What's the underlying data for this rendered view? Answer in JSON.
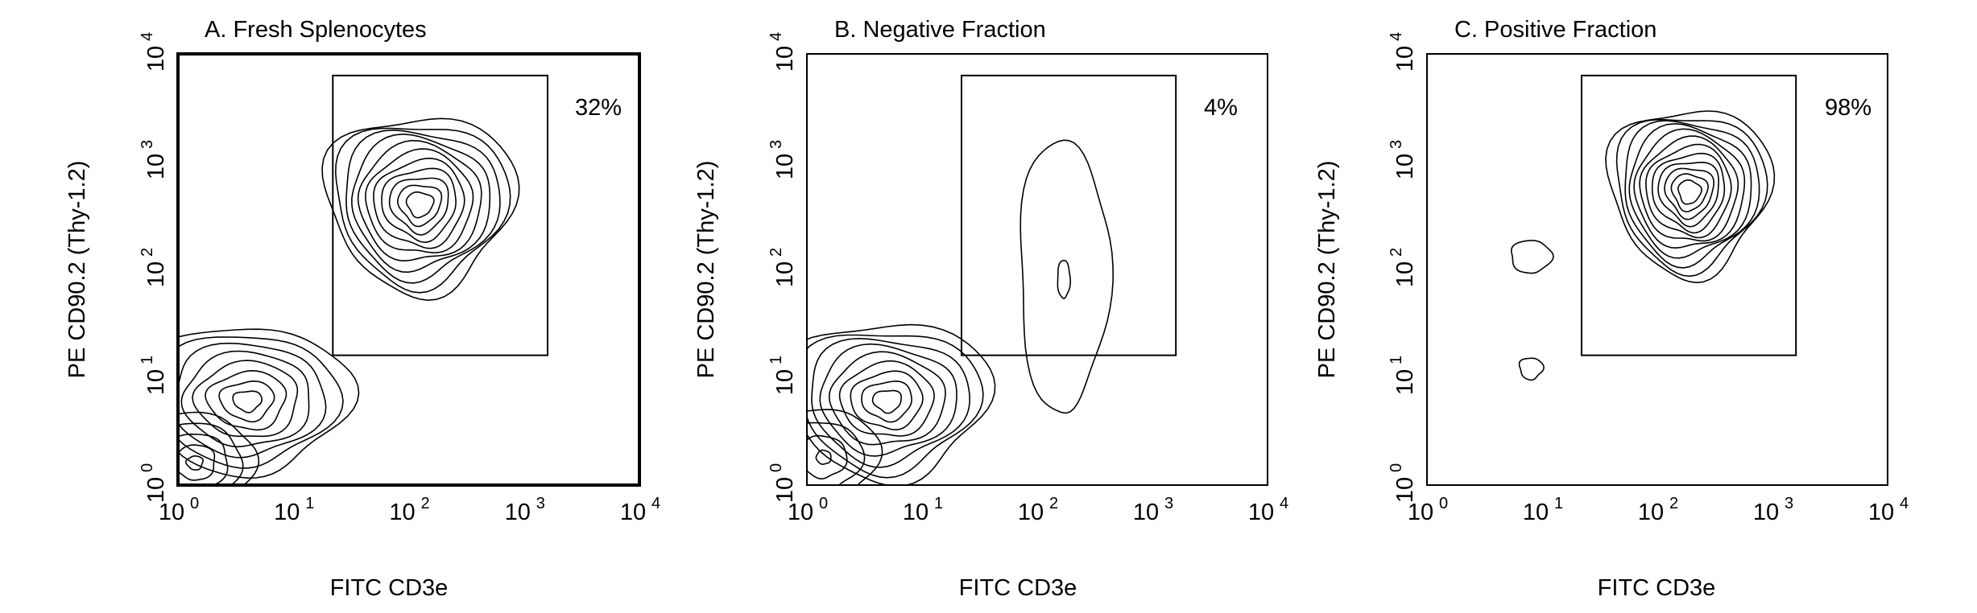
{
  "chart_data": [
    {
      "type": "contour",
      "title": "A.  Fresh Splenocytes",
      "xlabel": "FITC CD3e",
      "ylabel": "PE CD90.2 (Thy-1.2)",
      "xscale": "log",
      "yscale": "log",
      "xlim": [
        1,
        10000
      ],
      "ylim": [
        1,
        10000
      ],
      "x_ticks": [
        "10",
        "10",
        "10",
        "10",
        "10"
      ],
      "x_tick_exponents": [
        "0",
        "1",
        "2",
        "3",
        "4"
      ],
      "y_ticks": [
        "10",
        "10",
        "10",
        "10",
        "10"
      ],
      "y_tick_exponents": [
        "0",
        "1",
        "2",
        "3",
        "4"
      ],
      "gate": {
        "x": [
          22,
          1600
        ],
        "y": [
          16,
          6300
        ]
      },
      "gate_label": "32%",
      "populations": [
        {
          "cx": 125,
          "cy": 400,
          "sx": 0.35,
          "sy": 0.36,
          "levels": 11
        },
        {
          "cx": 4,
          "cy": 6,
          "sx": 0.38,
          "sy": 0.3,
          "levels": 8
        },
        {
          "cx": 1.4,
          "cy": 1.6,
          "sx": 0.22,
          "sy": 0.2,
          "levels": 5
        }
      ]
    },
    {
      "type": "contour",
      "title": "B.  Negative Fraction",
      "xlabel": "FITC CD3e",
      "ylabel": "PE CD90.2 (Thy-1.2)",
      "xscale": "log",
      "yscale": "log",
      "xlim": [
        1,
        10000
      ],
      "ylim": [
        1,
        10000
      ],
      "x_ticks": [
        "10",
        "10",
        "10",
        "10",
        "10"
      ],
      "x_tick_exponents": [
        "0",
        "1",
        "2",
        "3",
        "4"
      ],
      "y_ticks": [
        "10",
        "10",
        "10",
        "10",
        "10"
      ],
      "y_tick_exponents": [
        "0",
        "1",
        "2",
        "3",
        "4"
      ],
      "gate": {
        "x": [
          22,
          1600
        ],
        "y": [
          16,
          6300
        ]
      },
      "gate_label": "4%",
      "populations": [
        {
          "cx": 5,
          "cy": 6,
          "sx": 0.38,
          "sy": 0.32,
          "levels": 9
        },
        {
          "cx": 1.4,
          "cy": 1.8,
          "sx": 0.2,
          "sy": 0.2,
          "levels": 4
        },
        {
          "cx": 170,
          "cy": 80,
          "sx": 0.17,
          "sy": 0.55,
          "levels": 2
        }
      ]
    },
    {
      "type": "contour",
      "title": "C.  Positive Fraction",
      "xlabel": "FITC CD3e",
      "ylabel": "PE CD90.2 (Thy-1.2)",
      "xscale": "log",
      "yscale": "log",
      "xlim": [
        1,
        10000
      ],
      "ylim": [
        1,
        10000
      ],
      "x_ticks": [
        "10",
        "10",
        "10",
        "10",
        "10"
      ],
      "x_tick_exponents": [
        "0",
        "1",
        "2",
        "3",
        "4"
      ],
      "y_ticks": [
        "10",
        "10",
        "10",
        "10",
        "10"
      ],
      "y_tick_exponents": [
        "0",
        "1",
        "2",
        "3",
        "4"
      ],
      "gate": {
        "x": [
          22,
          1600
        ],
        "y": [
          16,
          6300
        ]
      },
      "gate_label": "98%",
      "populations": [
        {
          "cx": 190,
          "cy": 520,
          "sx": 0.3,
          "sy": 0.34,
          "levels": 12
        },
        {
          "cx": 8,
          "cy": 12,
          "sx": 0.08,
          "sy": 0.08,
          "levels": 1
        },
        {
          "cx": 8,
          "cy": 130,
          "sx": 0.14,
          "sy": 0.12,
          "levels": 1
        }
      ]
    }
  ]
}
